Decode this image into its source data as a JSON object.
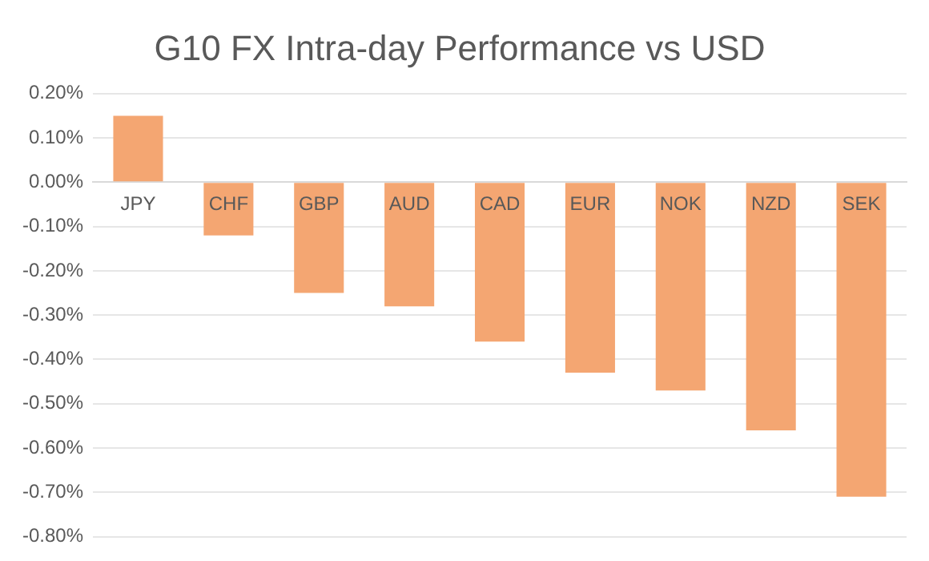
{
  "chart_data": {
    "type": "bar",
    "title": "G10 FX Intra-day Performance vs USD",
    "categories": [
      "JPY",
      "CHF",
      "GBP",
      "AUD",
      "CAD",
      "EUR",
      "NOK",
      "NZD",
      "SEK"
    ],
    "values": [
      0.15,
      -0.12,
      -0.25,
      -0.28,
      -0.36,
      -0.43,
      -0.47,
      -0.56,
      -0.71
    ],
    "color": "#f4a672",
    "ylim": [
      -0.8,
      0.2
    ],
    "yticks": [
      {
        "value": 0.2,
        "label": "0.20%"
      },
      {
        "value": 0.1,
        "label": "0.10%"
      },
      {
        "value": 0,
        "label": "0.00%"
      },
      {
        "value": -0.1,
        "label": "-0.10%"
      },
      {
        "value": -0.2,
        "label": "-0.20%"
      },
      {
        "value": -0.3,
        "label": "-0.30%"
      },
      {
        "value": -0.4,
        "label": "-0.40%"
      },
      {
        "value": -0.5,
        "label": "-0.50%"
      },
      {
        "value": -0.6,
        "label": "-0.60%"
      },
      {
        "value": -0.7,
        "label": "-0.70%"
      },
      {
        "value": -0.8,
        "label": "-0.80%"
      }
    ],
    "grid": "y",
    "legend": false
  }
}
